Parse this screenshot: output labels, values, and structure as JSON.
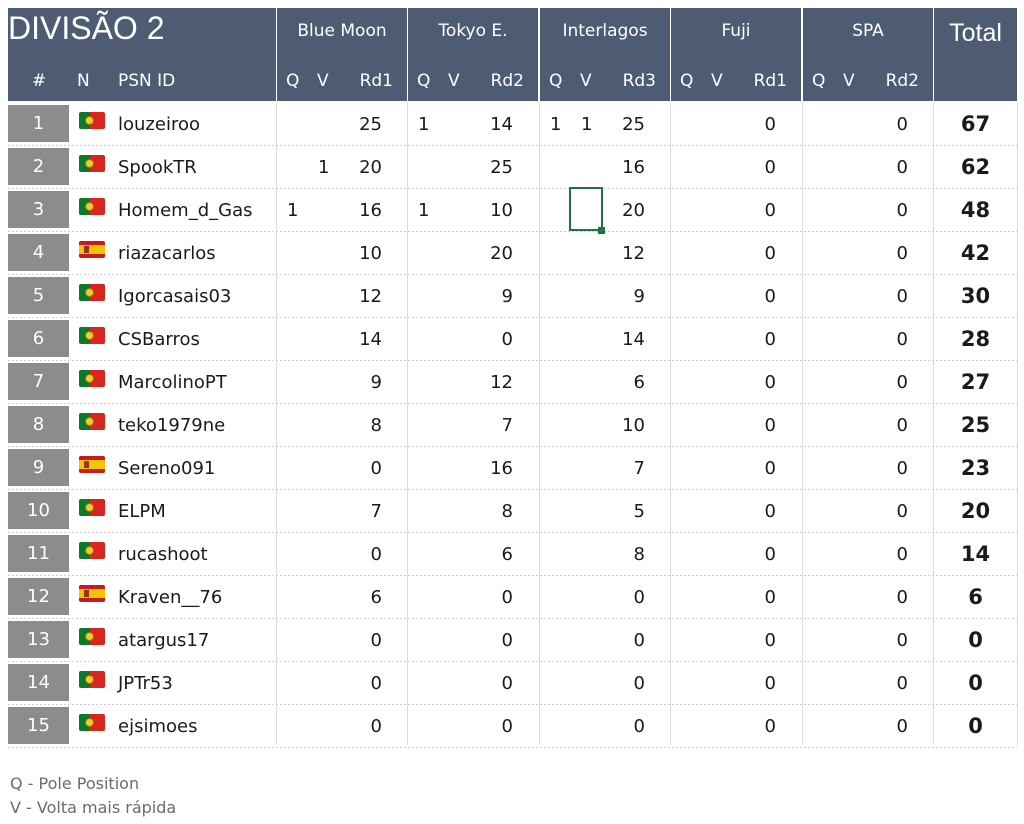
{
  "title": "DIVISÃO 2",
  "headers": {
    "pos": "#",
    "nat": "N",
    "psn": "PSN ID",
    "total": "Total"
  },
  "tracks": [
    {
      "name": "Blue Moon",
      "q": "Q",
      "v": "V",
      "rd": "Rd1"
    },
    {
      "name": "Tokyo E.",
      "q": "Q",
      "v": "V",
      "rd": "Rd2"
    },
    {
      "name": "Interlagos",
      "q": "Q",
      "v": "V",
      "rd": "Rd3"
    },
    {
      "name": "Fuji",
      "q": "Q",
      "v": "V",
      "rd": "Rd1"
    },
    {
      "name": "SPA",
      "q": "Q",
      "v": "V",
      "rd": "Rd2"
    }
  ],
  "rows": [
    {
      "pos": "1",
      "flag": "pt-flag-icon",
      "psn": "louzeiroo",
      "r": [
        [
          "",
          "",
          "25"
        ],
        [
          "1",
          "",
          "14"
        ],
        [
          "1",
          "1",
          "25"
        ],
        [
          "",
          "",
          "0"
        ],
        [
          "",
          "",
          "0"
        ]
      ],
      "total": "67"
    },
    {
      "pos": "2",
      "flag": "pt-flag-icon",
      "psn": "SpookTR",
      "r": [
        [
          "",
          "1",
          "20"
        ],
        [
          "",
          "",
          "25"
        ],
        [
          "",
          "",
          "16"
        ],
        [
          "",
          "",
          "0"
        ],
        [
          "",
          "",
          "0"
        ]
      ],
      "total": "62"
    },
    {
      "pos": "3",
      "flag": "pt-flag-icon",
      "psn": "Homem_d_Gas",
      "r": [
        [
          "1",
          "",
          "16"
        ],
        [
          "1",
          "",
          "10"
        ],
        [
          "",
          "",
          "20"
        ],
        [
          "",
          "",
          "0"
        ],
        [
          "",
          "",
          "0"
        ]
      ],
      "total": "48"
    },
    {
      "pos": "4",
      "flag": "es-flag-icon",
      "psn": "riazacarlos",
      "r": [
        [
          "",
          "",
          "10"
        ],
        [
          "",
          "",
          "20"
        ],
        [
          "",
          "",
          "12"
        ],
        [
          "",
          "",
          "0"
        ],
        [
          "",
          "",
          "0"
        ]
      ],
      "total": "42"
    },
    {
      "pos": "5",
      "flag": "pt-flag-icon",
      "psn": "Igorcasais03",
      "r": [
        [
          "",
          "",
          "12"
        ],
        [
          "",
          "",
          "9"
        ],
        [
          "",
          "",
          "9"
        ],
        [
          "",
          "",
          "0"
        ],
        [
          "",
          "",
          "0"
        ]
      ],
      "total": "30"
    },
    {
      "pos": "6",
      "flag": "pt-flag-icon",
      "psn": "CSBarros",
      "r": [
        [
          "",
          "",
          "14"
        ],
        [
          "",
          "",
          "0"
        ],
        [
          "",
          "",
          "14"
        ],
        [
          "",
          "",
          "0"
        ],
        [
          "",
          "",
          "0"
        ]
      ],
      "total": "28"
    },
    {
      "pos": "7",
      "flag": "pt-flag-icon",
      "psn": "MarcolinoPT",
      "r": [
        [
          "",
          "",
          "9"
        ],
        [
          "",
          "",
          "12"
        ],
        [
          "",
          "",
          "6"
        ],
        [
          "",
          "",
          "0"
        ],
        [
          "",
          "",
          "0"
        ]
      ],
      "total": "27"
    },
    {
      "pos": "8",
      "flag": "pt-flag-icon",
      "psn": "teko1979ne",
      "r": [
        [
          "",
          "",
          "8"
        ],
        [
          "",
          "",
          "7"
        ],
        [
          "",
          "",
          "10"
        ],
        [
          "",
          "",
          "0"
        ],
        [
          "",
          "",
          "0"
        ]
      ],
      "total": "25"
    },
    {
      "pos": "9",
      "flag": "es-flag-icon",
      "psn": "Sereno091",
      "r": [
        [
          "",
          "",
          "0"
        ],
        [
          "",
          "",
          "16"
        ],
        [
          "",
          "",
          "7"
        ],
        [
          "",
          "",
          "0"
        ],
        [
          "",
          "",
          "0"
        ]
      ],
      "total": "23"
    },
    {
      "pos": "10",
      "flag": "pt-flag-icon",
      "psn": "ELPM",
      "r": [
        [
          "",
          "",
          "7"
        ],
        [
          "",
          "",
          "8"
        ],
        [
          "",
          "",
          "5"
        ],
        [
          "",
          "",
          "0"
        ],
        [
          "",
          "",
          "0"
        ]
      ],
      "total": "20"
    },
    {
      "pos": "11",
      "flag": "pt-flag-icon",
      "psn": "rucashoot",
      "r": [
        [
          "",
          "",
          "0"
        ],
        [
          "",
          "",
          "6"
        ],
        [
          "",
          "",
          "8"
        ],
        [
          "",
          "",
          "0"
        ],
        [
          "",
          "",
          "0"
        ]
      ],
      "total": "14"
    },
    {
      "pos": "12",
      "flag": "es-flag-icon",
      "psn": "Kraven__76",
      "r": [
        [
          "",
          "",
          "6"
        ],
        [
          "",
          "",
          "0"
        ],
        [
          "",
          "",
          "0"
        ],
        [
          "",
          "",
          "0"
        ],
        [
          "",
          "",
          "0"
        ]
      ],
      "total": "6"
    },
    {
      "pos": "13",
      "flag": "pt-flag-icon",
      "psn": "atargus17",
      "r": [
        [
          "",
          "",
          "0"
        ],
        [
          "",
          "",
          "0"
        ],
        [
          "",
          "",
          "0"
        ],
        [
          "",
          "",
          "0"
        ],
        [
          "",
          "",
          "0"
        ]
      ],
      "total": "0"
    },
    {
      "pos": "14",
      "flag": "pt-flag-icon",
      "psn": "JPTr53",
      "r": [
        [
          "",
          "",
          "0"
        ],
        [
          "",
          "",
          "0"
        ],
        [
          "",
          "",
          "0"
        ],
        [
          "",
          "",
          "0"
        ],
        [
          "",
          "",
          "0"
        ]
      ],
      "total": "0"
    },
    {
      "pos": "15",
      "flag": "pt-flag-icon",
      "psn": "ejsimoes",
      "r": [
        [
          "",
          "",
          "0"
        ],
        [
          "",
          "",
          "0"
        ],
        [
          "",
          "",
          "0"
        ],
        [
          "",
          "",
          "0"
        ],
        [
          "",
          "",
          "0"
        ]
      ],
      "total": "0"
    }
  ],
  "legend": [
    "Q - Pole Position",
    "V - Volta mais rápida"
  ],
  "colors": {
    "header_bg": "#4d5b73",
    "position_cell": "#8c8c8c",
    "selection": "#217346"
  }
}
